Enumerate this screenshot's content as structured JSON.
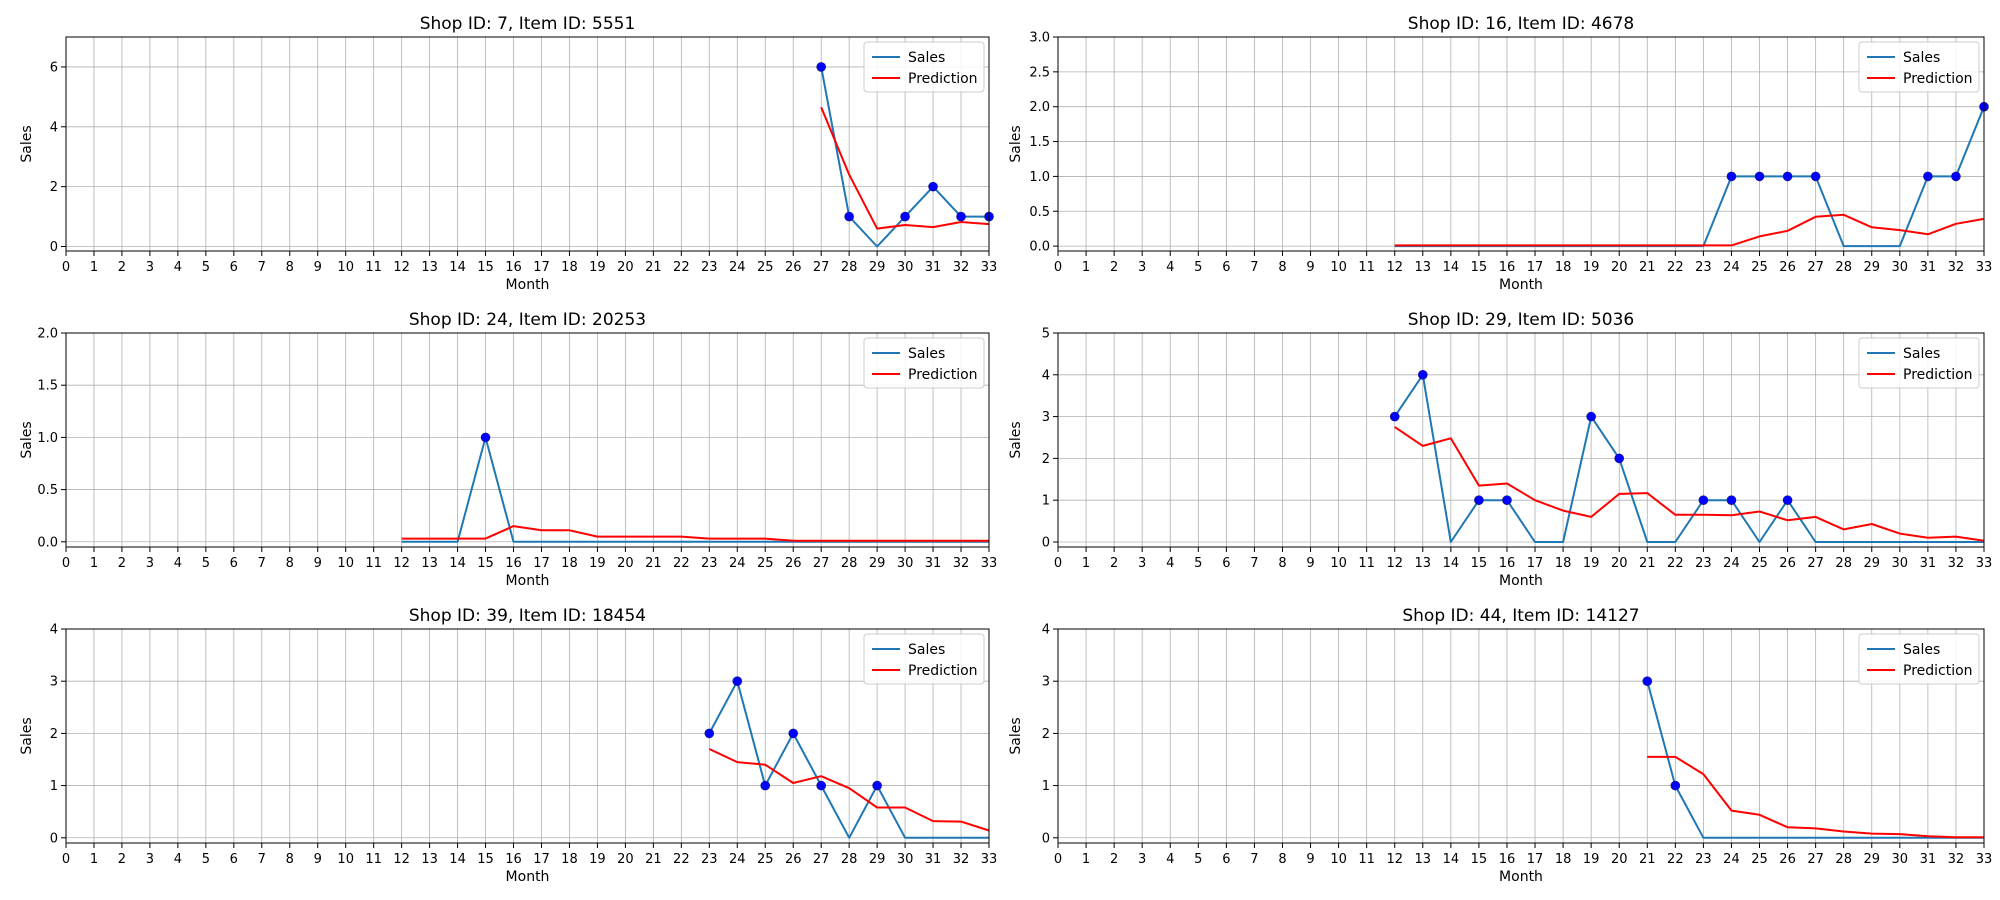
{
  "colors": {
    "sales": "#1f77b4",
    "prediction": "#ff0000",
    "marker": "#0000ff",
    "grid": "#b0b0b0"
  },
  "legend": {
    "placement": "top-right",
    "entries": [
      "Sales",
      "Prediction"
    ]
  },
  "chart_data": [
    {
      "type": "line",
      "title": "Shop ID: 7, Item ID: 5551",
      "xlabel": "Month",
      "ylabel": "Sales",
      "xlim": [
        0,
        33
      ],
      "ylim": [
        -0.15,
        7
      ],
      "xticks": [
        0,
        1,
        2,
        3,
        4,
        5,
        6,
        7,
        8,
        9,
        10,
        11,
        12,
        13,
        14,
        15,
        16,
        17,
        18,
        19,
        20,
        21,
        22,
        23,
        24,
        25,
        26,
        27,
        28,
        29,
        30,
        31,
        32,
        33
      ],
      "yticks": [
        0,
        2,
        4,
        6
      ],
      "grid": true,
      "series": [
        {
          "name": "Sales",
          "x": [
            27,
            28,
            29,
            30,
            31,
            32,
            33
          ],
          "y": [
            6,
            1,
            0,
            1,
            2,
            1,
            1
          ]
        },
        {
          "name": "Prediction",
          "x": [
            27,
            28,
            29,
            30,
            31,
            32,
            33
          ],
          "y": [
            4.65,
            2.4,
            0.6,
            0.72,
            0.65,
            0.82,
            0.75
          ]
        }
      ],
      "markers": {
        "x": [
          27,
          28,
          30,
          31,
          32,
          33
        ],
        "y": [
          6,
          1,
          1,
          2,
          1,
          1
        ]
      }
    },
    {
      "type": "line",
      "title": "Shop ID: 16, Item ID: 4678",
      "xlabel": "Month",
      "ylabel": "Sales",
      "xlim": [
        0,
        33
      ],
      "ylim": [
        -0.07,
        3
      ],
      "xticks": [
        0,
        1,
        2,
        3,
        4,
        5,
        6,
        7,
        8,
        9,
        10,
        11,
        12,
        13,
        14,
        15,
        16,
        17,
        18,
        19,
        20,
        21,
        22,
        23,
        24,
        25,
        26,
        27,
        28,
        29,
        30,
        31,
        32,
        33
      ],
      "yticks": [
        0.0,
        0.5,
        1.0,
        1.5,
        2.0,
        2.5,
        3.0
      ],
      "ytick_labels": [
        "0.0",
        "0.5",
        "1.0",
        "1.5",
        "2.0",
        "2.5",
        "3.0"
      ],
      "grid": true,
      "series": [
        {
          "name": "Sales",
          "x": [
            12,
            13,
            14,
            15,
            16,
            17,
            18,
            19,
            20,
            21,
            22,
            23,
            24,
            25,
            26,
            27,
            28,
            29,
            30,
            31,
            32,
            33
          ],
          "y": [
            0,
            0,
            0,
            0,
            0,
            0,
            0,
            0,
            0,
            0,
            0,
            0,
            1,
            1,
            1,
            1,
            0,
            0,
            0,
            1,
            1,
            2
          ]
        },
        {
          "name": "Prediction",
          "x": [
            12,
            13,
            14,
            15,
            16,
            17,
            18,
            19,
            20,
            21,
            22,
            23,
            24,
            25,
            26,
            27,
            28,
            29,
            30,
            31,
            32,
            33
          ],
          "y": [
            0.01,
            0.01,
            0.01,
            0.01,
            0.01,
            0.01,
            0.01,
            0.01,
            0.01,
            0.01,
            0.01,
            0.01,
            0.01,
            0.14,
            0.22,
            0.42,
            0.45,
            0.27,
            0.23,
            0.17,
            0.32,
            0.39
          ]
        }
      ],
      "markers": {
        "x": [
          24,
          25,
          26,
          27,
          31,
          32,
          33
        ],
        "y": [
          1,
          1,
          1,
          1,
          1,
          1,
          2
        ]
      }
    },
    {
      "type": "line",
      "title": "Shop ID: 24, Item ID: 20253",
      "xlabel": "Month",
      "ylabel": "Sales",
      "xlim": [
        0,
        33
      ],
      "ylim": [
        -0.05,
        2
      ],
      "xticks": [
        0,
        1,
        2,
        3,
        4,
        5,
        6,
        7,
        8,
        9,
        10,
        11,
        12,
        13,
        14,
        15,
        16,
        17,
        18,
        19,
        20,
        21,
        22,
        23,
        24,
        25,
        26,
        27,
        28,
        29,
        30,
        31,
        32,
        33
      ],
      "yticks": [
        0.0,
        0.5,
        1.0,
        1.5,
        2.0
      ],
      "ytick_labels": [
        "0.0",
        "0.5",
        "1.0",
        "1.5",
        "2.0"
      ],
      "grid": true,
      "series": [
        {
          "name": "Sales",
          "x": [
            12,
            13,
            14,
            15,
            16,
            17,
            18,
            19,
            20,
            21,
            22,
            23,
            24,
            25,
            26,
            27,
            28,
            29,
            30,
            31,
            32,
            33
          ],
          "y": [
            0,
            0,
            0,
            1,
            0,
            0,
            0,
            0,
            0,
            0,
            0,
            0,
            0,
            0,
            0,
            0,
            0,
            0,
            0,
            0,
            0,
            0
          ]
        },
        {
          "name": "Prediction",
          "x": [
            12,
            13,
            14,
            15,
            16,
            17,
            18,
            19,
            20,
            21,
            22,
            23,
            24,
            25,
            26,
            27,
            28,
            29,
            30,
            31,
            32,
            33
          ],
          "y": [
            0.03,
            0.03,
            0.03,
            0.03,
            0.15,
            0.11,
            0.11,
            0.05,
            0.05,
            0.05,
            0.05,
            0.03,
            0.03,
            0.03,
            0.01,
            0.01,
            0.01,
            0.01,
            0.01,
            0.01,
            0.01,
            0.01
          ]
        }
      ],
      "markers": {
        "x": [
          15
        ],
        "y": [
          1
        ]
      }
    },
    {
      "type": "line",
      "title": "Shop ID: 29, Item ID: 5036",
      "xlabel": "Month",
      "ylabel": "Sales",
      "xlim": [
        0,
        33
      ],
      "ylim": [
        -0.12,
        5
      ],
      "xticks": [
        0,
        1,
        2,
        3,
        4,
        5,
        6,
        7,
        8,
        9,
        10,
        11,
        12,
        13,
        14,
        15,
        16,
        17,
        18,
        19,
        20,
        21,
        22,
        23,
        24,
        25,
        26,
        27,
        28,
        29,
        30,
        31,
        32,
        33
      ],
      "yticks": [
        0,
        1,
        2,
        3,
        4,
        5
      ],
      "grid": true,
      "series": [
        {
          "name": "Sales",
          "x": [
            12,
            13,
            14,
            15,
            16,
            17,
            18,
            19,
            20,
            21,
            22,
            23,
            24,
            25,
            26,
            27,
            28,
            29,
            30,
            31,
            32,
            33
          ],
          "y": [
            3,
            4,
            0,
            1,
            1,
            0,
            0,
            3,
            2,
            0,
            0,
            1,
            1,
            0,
            1,
            0,
            0,
            0,
            0,
            0,
            0,
            0
          ]
        },
        {
          "name": "Prediction",
          "x": [
            12,
            13,
            14,
            15,
            16,
            17,
            18,
            19,
            20,
            21,
            22,
            23,
            24,
            25,
            26,
            27,
            28,
            29,
            30,
            31,
            32,
            33
          ],
          "y": [
            2.75,
            2.3,
            2.48,
            1.35,
            1.4,
            1.0,
            0.75,
            0.6,
            1.15,
            1.17,
            0.65,
            0.65,
            0.64,
            0.73,
            0.52,
            0.6,
            0.3,
            0.43,
            0.2,
            0.1,
            0.13,
            0.03
          ]
        }
      ],
      "markers": {
        "x": [
          12,
          13,
          15,
          16,
          19,
          20,
          23,
          24,
          26
        ],
        "y": [
          3,
          4,
          1,
          1,
          3,
          2,
          1,
          1,
          1
        ]
      }
    },
    {
      "type": "line",
      "title": "Shop ID: 39, Item ID: 18454",
      "xlabel": "Month",
      "ylabel": "Sales",
      "xlim": [
        0,
        33
      ],
      "ylim": [
        -0.1,
        4
      ],
      "xticks": [
        0,
        1,
        2,
        3,
        4,
        5,
        6,
        7,
        8,
        9,
        10,
        11,
        12,
        13,
        14,
        15,
        16,
        17,
        18,
        19,
        20,
        21,
        22,
        23,
        24,
        25,
        26,
        27,
        28,
        29,
        30,
        31,
        32,
        33
      ],
      "yticks": [
        0,
        1,
        2,
        3,
        4
      ],
      "grid": true,
      "series": [
        {
          "name": "Sales",
          "x": [
            23,
            24,
            25,
            26,
            27,
            28,
            29,
            30,
            31,
            32,
            33
          ],
          "y": [
            2,
            3,
            1,
            2,
            1,
            0,
            1,
            0,
            0,
            0,
            0
          ]
        },
        {
          "name": "Prediction",
          "x": [
            23,
            24,
            25,
            26,
            27,
            28,
            29,
            30,
            31,
            32,
            33
          ],
          "y": [
            1.7,
            1.45,
            1.4,
            1.05,
            1.18,
            0.95,
            0.58,
            0.58,
            0.32,
            0.31,
            0.14
          ]
        }
      ],
      "markers": {
        "x": [
          23,
          24,
          25,
          26,
          27,
          29
        ],
        "y": [
          2,
          3,
          1,
          2,
          1,
          1
        ]
      }
    },
    {
      "type": "line",
      "title": "Shop ID: 44, Item ID: 14127",
      "xlabel": "Month",
      "ylabel": "Sales",
      "xlim": [
        0,
        33
      ],
      "ylim": [
        -0.1,
        4
      ],
      "xticks": [
        0,
        1,
        2,
        3,
        4,
        5,
        6,
        7,
        8,
        9,
        10,
        11,
        12,
        13,
        14,
        15,
        16,
        17,
        18,
        19,
        20,
        21,
        22,
        23,
        24,
        25,
        26,
        27,
        28,
        29,
        30,
        31,
        32,
        33
      ],
      "yticks": [
        0,
        1,
        2,
        3,
        4
      ],
      "grid": true,
      "series": [
        {
          "name": "Sales",
          "x": [
            21,
            22,
            23,
            24,
            25,
            26,
            27,
            28,
            29,
            30,
            31,
            32,
            33
          ],
          "y": [
            3,
            1,
            0,
            0,
            0,
            0,
            0,
            0,
            0,
            0,
            0,
            0,
            0
          ]
        },
        {
          "name": "Prediction",
          "x": [
            21,
            22,
            23,
            24,
            25,
            26,
            27,
            28,
            29,
            30,
            31,
            32,
            33
          ],
          "y": [
            1.55,
            1.55,
            1.22,
            0.52,
            0.44,
            0.2,
            0.18,
            0.12,
            0.08,
            0.07,
            0.03,
            0.01,
            0.01
          ]
        }
      ],
      "markers": {
        "x": [
          21,
          22
        ],
        "y": [
          3,
          1
        ]
      }
    }
  ]
}
